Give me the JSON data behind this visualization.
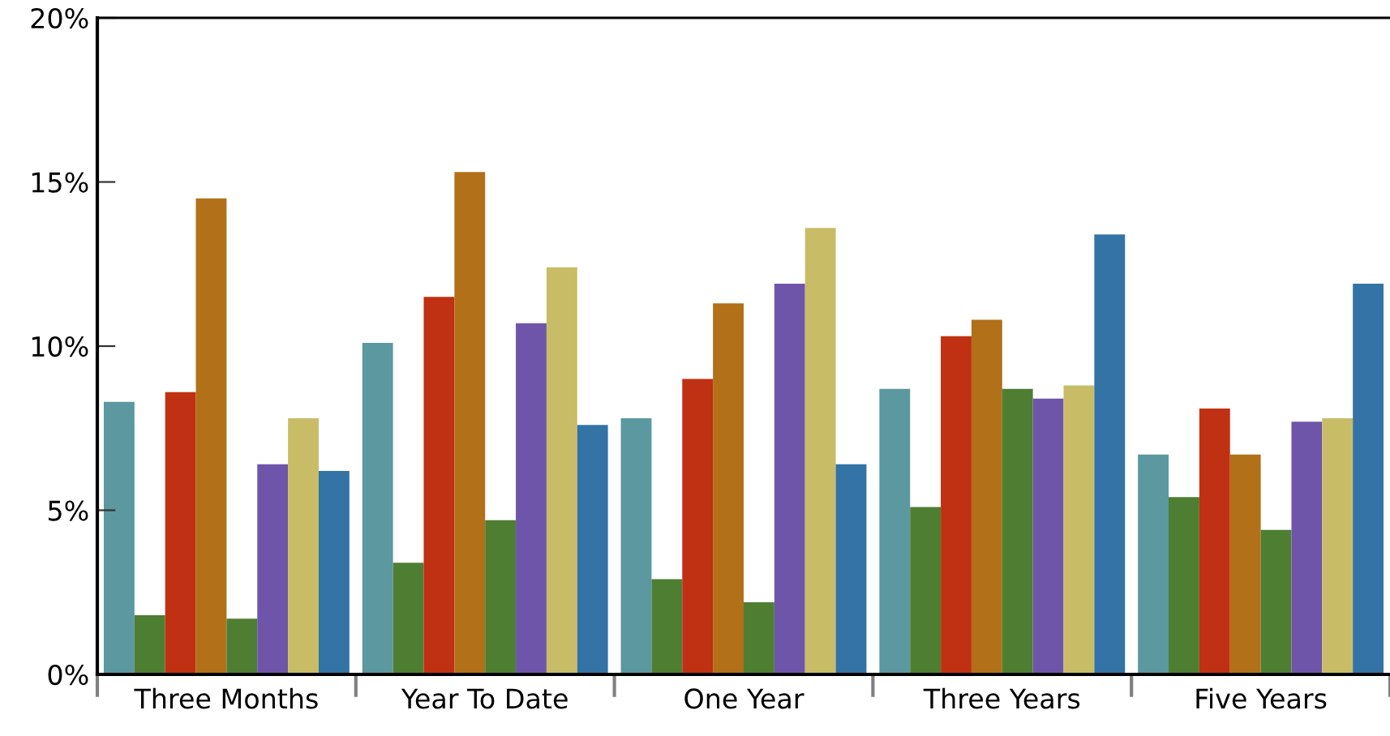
{
  "chart_data": {
    "type": "bar",
    "categories": [
      "Three Months",
      "Year To Date",
      "One Year",
      "Three Years",
      "Five Years"
    ],
    "series": [
      {
        "color": "#5b98a0",
        "values": [
          8.3,
          10.1,
          7.8,
          8.7,
          6.7
        ]
      },
      {
        "color": "#4e7e32",
        "values": [
          1.8,
          3.4,
          2.9,
          5.1,
          5.4
        ]
      },
      {
        "color": "#c03012",
        "values": [
          8.6,
          11.5,
          9.0,
          10.3,
          8.1
        ]
      },
      {
        "color": "#b27019",
        "values": [
          14.5,
          15.3,
          11.3,
          10.8,
          6.7
        ]
      },
      {
        "color": "#4e7e32",
        "values": [
          1.7,
          4.7,
          2.2,
          8.7,
          4.4
        ]
      },
      {
        "color": "#6f55aa",
        "values": [
          6.4,
          10.7,
          11.9,
          8.4,
          7.7
        ]
      },
      {
        "color": "#c8bc67",
        "values": [
          7.8,
          12.4,
          13.6,
          8.8,
          7.8
        ]
      },
      {
        "color": "#3373a5",
        "values": [
          6.2,
          7.6,
          6.4,
          13.4,
          11.9
        ]
      }
    ],
    "ylim": [
      0,
      20
    ],
    "yticks": [
      {
        "value": 0,
        "label": "0%"
      },
      {
        "value": 5,
        "label": "5%"
      },
      {
        "value": 10,
        "label": "10%"
      },
      {
        "value": 15,
        "label": "15%"
      },
      {
        "value": 20,
        "label": "20%"
      }
    ],
    "grid": false
  }
}
